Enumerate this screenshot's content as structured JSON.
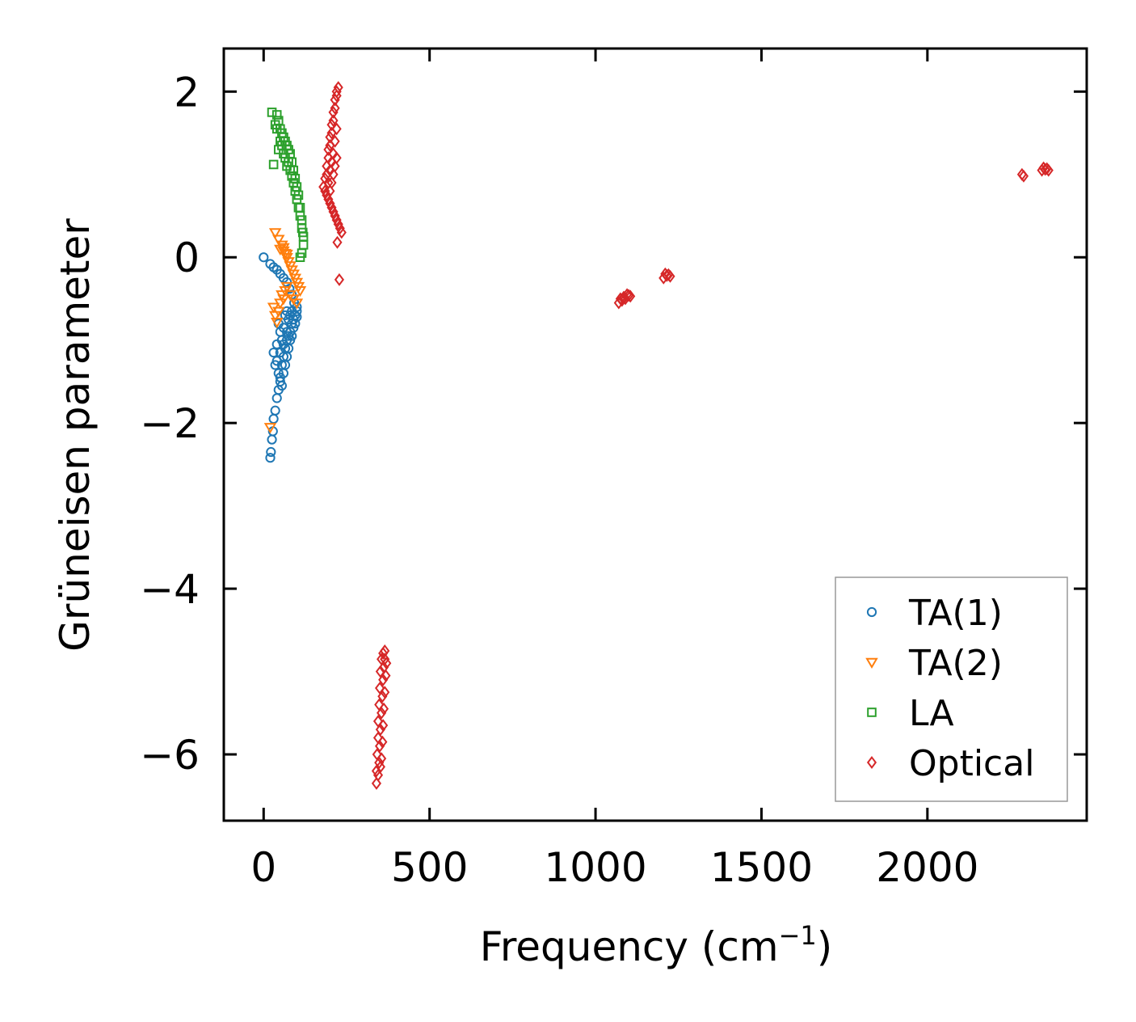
{
  "chart_data": {
    "type": "scatter",
    "title": "",
    "xlabel": "Frequency (cm",
    "xlabel_sup": "−1",
    "xlabel_end": ")",
    "ylabel": "Grüneisen parameter",
    "xlim": [
      -120,
      2480
    ],
    "ylim": [
      -6.8,
      2.52
    ],
    "xticks": [
      0,
      500,
      1000,
      1500,
      2000
    ],
    "xtick_labels": [
      "0",
      "500",
      "1000",
      "1500",
      "2000"
    ],
    "yticks": [
      2,
      0,
      -2,
      -4,
      -6
    ],
    "ytick_labels": [
      "2",
      "0",
      "−2",
      "−4",
      "−6"
    ],
    "grid": false,
    "legend_position": "lower-right",
    "series": [
      {
        "name": "TA(1)",
        "marker": "circle",
        "color": "#1f77b4",
        "points": [
          [
            0,
            0
          ],
          [
            20,
            -0.08
          ],
          [
            30,
            -0.12
          ],
          [
            40,
            -0.15
          ],
          [
            50,
            -0.2
          ],
          [
            60,
            -0.25
          ],
          [
            70,
            -0.3
          ],
          [
            78,
            -0.38
          ],
          [
            85,
            -0.45
          ],
          [
            92,
            -0.55
          ],
          [
            100,
            -0.6
          ],
          [
            20,
            -2.42
          ],
          [
            22,
            -2.35
          ],
          [
            25,
            -2.2
          ],
          [
            28,
            -2.1
          ],
          [
            30,
            -1.95
          ],
          [
            35,
            -1.85
          ],
          [
            40,
            -1.7
          ],
          [
            45,
            -1.6
          ],
          [
            50,
            -1.45
          ],
          [
            55,
            -1.3
          ],
          [
            60,
            -1.2
          ],
          [
            65,
            -1.1
          ],
          [
            70,
            -1.0
          ],
          [
            75,
            -0.95
          ],
          [
            80,
            -0.9
          ],
          [
            85,
            -0.8
          ],
          [
            90,
            -0.75
          ],
          [
            95,
            -0.7
          ],
          [
            100,
            -0.65
          ],
          [
            30,
            -1.15
          ],
          [
            35,
            -1.3
          ],
          [
            40,
            -1.25
          ],
          [
            45,
            -1.4
          ],
          [
            50,
            -1.5
          ],
          [
            55,
            -1.55
          ],
          [
            60,
            -1.4
          ],
          [
            65,
            -1.3
          ],
          [
            70,
            -1.2
          ],
          [
            75,
            -1.1
          ],
          [
            80,
            -1.0
          ],
          [
            85,
            -0.95
          ],
          [
            90,
            -0.85
          ],
          [
            95,
            -0.8
          ],
          [
            100,
            -0.72
          ],
          [
            45,
            -0.8
          ],
          [
            50,
            -0.9
          ],
          [
            55,
            -1.0
          ],
          [
            60,
            -0.85
          ],
          [
            65,
            -0.7
          ],
          [
            70,
            -0.65
          ],
          [
            75,
            -0.75
          ],
          [
            80,
            -0.7
          ],
          [
            85,
            -0.65
          ],
          [
            40,
            -1.05
          ],
          [
            50,
            -1.15
          ],
          [
            60,
            -1.05
          ],
          [
            70,
            -0.9
          ]
        ]
      },
      {
        "name": "TA(2)",
        "marker": "triangle-down",
        "color": "#ff7f0e",
        "points": [
          [
            20,
            -2.05
          ],
          [
            35,
            0.3
          ],
          [
            45,
            0.22
          ],
          [
            55,
            0.15
          ],
          [
            60,
            0.08
          ],
          [
            65,
            0.05
          ],
          [
            70,
            0.0
          ],
          [
            75,
            -0.05
          ],
          [
            80,
            -0.1
          ],
          [
            85,
            -0.15
          ],
          [
            90,
            -0.2
          ],
          [
            95,
            -0.25
          ],
          [
            100,
            -0.3
          ],
          [
            105,
            -0.35
          ],
          [
            110,
            -0.4
          ],
          [
            30,
            -0.6
          ],
          [
            35,
            -0.7
          ],
          [
            40,
            -0.78
          ],
          [
            45,
            -0.65
          ],
          [
            50,
            -0.55
          ],
          [
            55,
            -0.45
          ],
          [
            60,
            -0.5
          ],
          [
            65,
            -0.4
          ],
          [
            70,
            -0.35
          ],
          [
            80,
            -0.45
          ],
          [
            90,
            -0.5
          ],
          [
            100,
            -0.55
          ],
          [
            50,
            0.1
          ],
          [
            60,
            0.12
          ],
          [
            70,
            0.04
          ]
        ]
      },
      {
        "name": "LA",
        "marker": "square",
        "color": "#2ca02c",
        "points": [
          [
            25,
            1.75
          ],
          [
            40,
            1.72
          ],
          [
            45,
            1.65
          ],
          [
            50,
            1.55
          ],
          [
            55,
            1.5
          ],
          [
            60,
            1.45
          ],
          [
            65,
            1.4
          ],
          [
            70,
            1.35
          ],
          [
            75,
            1.3
          ],
          [
            80,
            1.25
          ],
          [
            85,
            1.15
          ],
          [
            90,
            1.05
          ],
          [
            95,
            0.95
          ],
          [
            100,
            0.85
          ],
          [
            105,
            0.75
          ],
          [
            110,
            0.6
          ],
          [
            115,
            0.45
          ],
          [
            118,
            0.3
          ],
          [
            120,
            0.15
          ],
          [
            115,
            0.05
          ],
          [
            110,
            0.0
          ],
          [
            30,
            1.12
          ],
          [
            35,
            1.6
          ],
          [
            40,
            1.55
          ],
          [
            45,
            1.3
          ],
          [
            50,
            1.4
          ],
          [
            55,
            1.35
          ],
          [
            60,
            1.25
          ],
          [
            65,
            1.2
          ],
          [
            70,
            1.1
          ],
          [
            75,
            1.15
          ],
          [
            80,
            1.05
          ],
          [
            85,
            0.98
          ],
          [
            90,
            0.9
          ],
          [
            95,
            0.8
          ],
          [
            100,
            0.7
          ],
          [
            105,
            0.6
          ],
          [
            110,
            0.5
          ],
          [
            115,
            0.35
          ],
          [
            120,
            0.25
          ]
        ]
      },
      {
        "name": "Optical",
        "marker": "diamond",
        "color": "#d62728",
        "points": [
          [
            180,
            0.85
          ],
          [
            185,
            0.8
          ],
          [
            190,
            0.75
          ],
          [
            195,
            0.7
          ],
          [
            200,
            0.65
          ],
          [
            205,
            0.6
          ],
          [
            210,
            0.55
          ],
          [
            215,
            0.5
          ],
          [
            220,
            0.45
          ],
          [
            225,
            0.4
          ],
          [
            230,
            0.35
          ],
          [
            235,
            0.3
          ],
          [
            222,
            0.18
          ],
          [
            228,
            -0.27
          ],
          [
            190,
            1.0
          ],
          [
            195,
            1.2
          ],
          [
            200,
            1.35
          ],
          [
            205,
            1.5
          ],
          [
            210,
            1.65
          ],
          [
            215,
            1.8
          ],
          [
            220,
            1.95
          ],
          [
            225,
            2.05
          ],
          [
            185,
            0.95
          ],
          [
            190,
            1.1
          ],
          [
            195,
            1.3
          ],
          [
            200,
            1.45
          ],
          [
            205,
            1.6
          ],
          [
            210,
            1.75
          ],
          [
            215,
            1.9
          ],
          [
            220,
            2.0
          ],
          [
            195,
            0.9
          ],
          [
            200,
            1.05
          ],
          [
            205,
            1.15
          ],
          [
            210,
            1.25
          ],
          [
            215,
            1.4
          ],
          [
            220,
            1.55
          ],
          [
            200,
            0.8
          ],
          [
            205,
            0.9
          ],
          [
            210,
            1.0
          ],
          [
            215,
            1.1
          ],
          [
            220,
            1.2
          ],
          [
            340,
            -6.35
          ],
          [
            340,
            -6.2
          ],
          [
            342,
            -6.0
          ],
          [
            345,
            -5.8
          ],
          [
            345,
            -5.6
          ],
          [
            348,
            -5.4
          ],
          [
            350,
            -5.2
          ],
          [
            352,
            -5.0
          ],
          [
            355,
            -4.85
          ],
          [
            360,
            -4.78
          ],
          [
            365,
            -4.75
          ],
          [
            348,
            -6.1
          ],
          [
            350,
            -5.9
          ],
          [
            352,
            -5.7
          ],
          [
            355,
            -5.5
          ],
          [
            358,
            -5.3
          ],
          [
            360,
            -5.1
          ],
          [
            362,
            -4.95
          ],
          [
            365,
            -4.85
          ],
          [
            355,
            -6.05
          ],
          [
            358,
            -5.85
          ],
          [
            360,
            -5.65
          ],
          [
            362,
            -5.45
          ],
          [
            365,
            -5.25
          ],
          [
            368,
            -5.05
          ],
          [
            370,
            -4.9
          ],
          [
            345,
            -6.25
          ],
          [
            352,
            -6.15
          ],
          [
            1070,
            -0.55
          ],
          [
            1075,
            -0.5
          ],
          [
            1080,
            -0.52
          ],
          [
            1085,
            -0.48
          ],
          [
            1090,
            -0.5
          ],
          [
            1095,
            -0.45
          ],
          [
            1100,
            -0.46
          ],
          [
            1105,
            -0.47
          ],
          [
            1205,
            -0.25
          ],
          [
            1210,
            -0.2
          ],
          [
            1215,
            -0.22
          ],
          [
            1220,
            -0.21
          ],
          [
            1225,
            -0.23
          ],
          [
            2285,
            1.0
          ],
          [
            2290,
            0.98
          ],
          [
            2345,
            1.05
          ],
          [
            2350,
            1.08
          ],
          [
            2355,
            1.06
          ],
          [
            2360,
            1.07
          ],
          [
            2365,
            1.05
          ]
        ]
      }
    ]
  }
}
